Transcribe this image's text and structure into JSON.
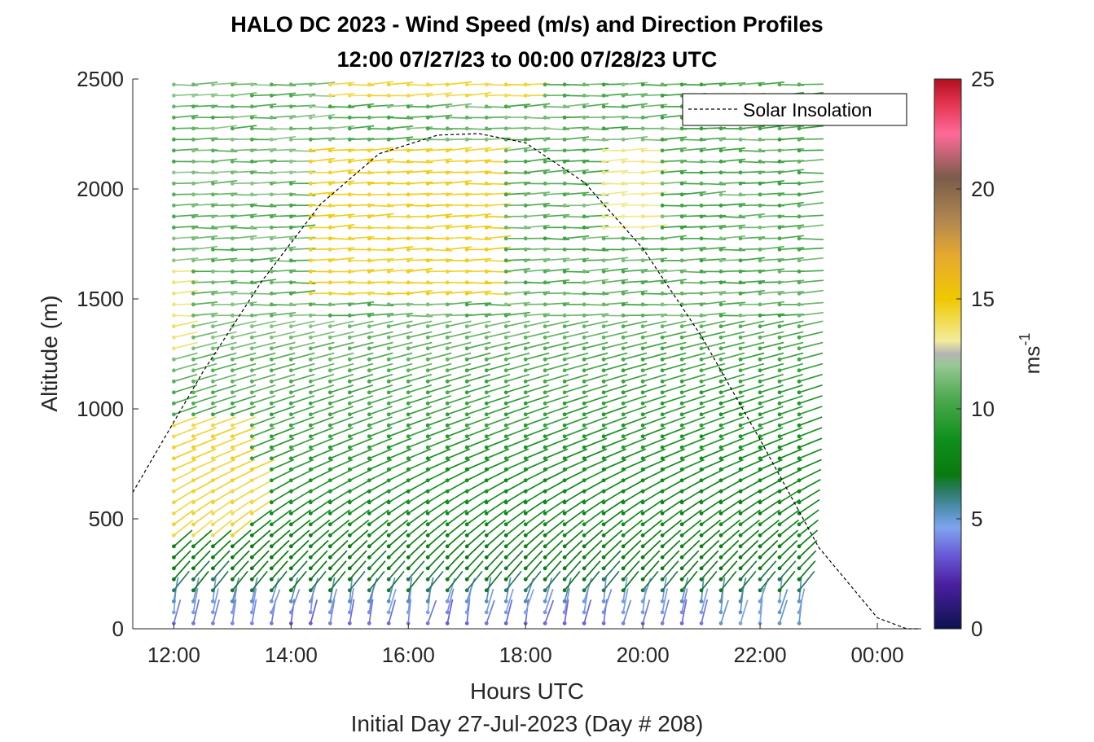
{
  "chart_data": {
    "type": "wind-barb-profile",
    "title_line1": "HALO DC 2023 - Wind Speed (m/s) and Direction Profiles",
    "title_line2": "12:00 07/27/23 to 00:00 07/28/23  UTC",
    "xlabel": "Hours UTC",
    "xlabel2": "Initial Day 27-Jul-2023 (Day # 208)",
    "ylabel": "Altitude (m)",
    "xlim_hours": [
      11.3,
      24.75
    ],
    "ylim": [
      0,
      2500
    ],
    "x_ticks": [
      {
        "value": 12,
        "label": "12:00"
      },
      {
        "value": 14,
        "label": "14:00"
      },
      {
        "value": 16,
        "label": "16:00"
      },
      {
        "value": 18,
        "label": "18:00"
      },
      {
        "value": 20,
        "label": "20:00"
      },
      {
        "value": 22,
        "label": "22:00"
      },
      {
        "value": 24,
        "label": "00:00"
      }
    ],
    "y_ticks": [
      {
        "value": 0,
        "label": "0"
      },
      {
        "value": 500,
        "label": "500"
      },
      {
        "value": 1000,
        "label": "1000"
      },
      {
        "value": 1500,
        "label": "1500"
      },
      {
        "value": 2000,
        "label": "2000"
      },
      {
        "value": 2500,
        "label": "2500"
      }
    ],
    "legend": {
      "label": "Solar Insolation",
      "position": "top-right",
      "style": "black dashed"
    },
    "solar_insolation": {
      "peak_time_hours": 17.2,
      "peak_altitude_m": 2250,
      "zero_time_hours": 24.5,
      "points": [
        [
          11.3,
          620
        ],
        [
          12.5,
          1170
        ],
        [
          13.5,
          1580
        ],
        [
          14.5,
          1930
        ],
        [
          15.5,
          2160
        ],
        [
          16.5,
          2245
        ],
        [
          17.2,
          2252
        ],
        [
          18.0,
          2210
        ],
        [
          19.0,
          2030
        ],
        [
          20.0,
          1730
        ],
        [
          21.0,
          1330
        ],
        [
          22.0,
          860
        ],
        [
          23.0,
          370
        ],
        [
          24.0,
          50
        ],
        [
          24.5,
          0
        ],
        [
          24.7,
          0
        ]
      ]
    },
    "profiles": {
      "time_start_hours": 12.0,
      "time_end_hours": 22.85,
      "time_step_hours": 0.3333,
      "alt_min_m": 25,
      "alt_max_m": 2500,
      "alt_step_m": 50,
      "speed_regions": [
        {
          "t": [
            11.8,
            13.1
          ],
          "z": [
            400,
            950
          ],
          "speed": 14.3
        },
        {
          "t": [
            13.1,
            13.6
          ],
          "z": [
            500,
            750
          ],
          "speed": 14.3
        },
        {
          "t": [
            14.1,
            17.5
          ],
          "z": [
            1480,
            2200
          ],
          "speed": 14.6
        },
        {
          "t": [
            14.5,
            18.0
          ],
          "z": [
            2380,
            2500
          ],
          "speed": 14.2
        },
        {
          "t": [
            11.8,
            12.3
          ],
          "z": [
            1250,
            1650
          ],
          "speed": 13.6
        },
        {
          "t": [
            19.0,
            20.2
          ],
          "z": [
            1800,
            2200
          ],
          "speed": 13.4
        }
      ]
    },
    "colorbar": {
      "label": "ms",
      "label_superscript": "-1",
      "min": 0,
      "max": 25,
      "ticks": [
        0,
        5,
        10,
        15,
        20,
        25
      ],
      "stops": [
        {
          "v": 0,
          "c": "#0d1250"
        },
        {
          "v": 2,
          "c": "#4a1fa0"
        },
        {
          "v": 3.4,
          "c": "#6a5cd8"
        },
        {
          "v": 4.6,
          "c": "#7fa4f0"
        },
        {
          "v": 5.6,
          "c": "#4a8aa8"
        },
        {
          "v": 6.3,
          "c": "#2a7a60"
        },
        {
          "v": 7.0,
          "c": "#0a7a10"
        },
        {
          "v": 8.6,
          "c": "#0f8f1c"
        },
        {
          "v": 10.5,
          "c": "#4eaa50"
        },
        {
          "v": 12.0,
          "c": "#98c894"
        },
        {
          "v": 12.5,
          "c": "#b4b4b4"
        },
        {
          "v": 13.1,
          "c": "#f2ec9c"
        },
        {
          "v": 15.0,
          "c": "#f0c800"
        },
        {
          "v": 17.0,
          "c": "#e6a830"
        },
        {
          "v": 18.5,
          "c": "#b48850"
        },
        {
          "v": 20.5,
          "c": "#7a5c4a"
        },
        {
          "v": 22.5,
          "c": "#ff6a98"
        },
        {
          "v": 24.0,
          "c": "#e0304a"
        },
        {
          "v": 25,
          "c": "#b01020"
        }
      ]
    }
  }
}
